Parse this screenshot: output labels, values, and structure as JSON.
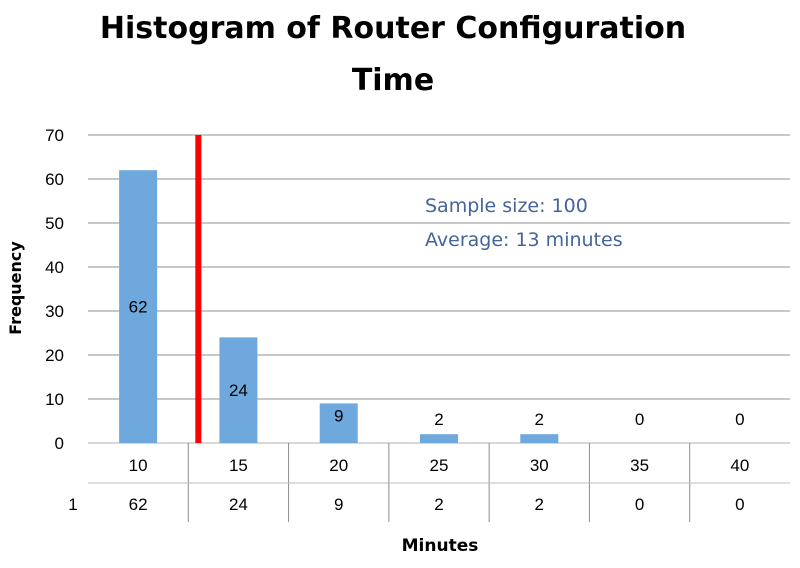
{
  "chart_data": {
    "type": "bar",
    "title_line1": "Histogram of Router Configuration",
    "title_line2": "Time",
    "xlabel": "Minutes",
    "ylabel": "Frequency",
    "categories": [
      "10",
      "15",
      "20",
      "25",
      "30",
      "35",
      "40"
    ],
    "values": [
      62,
      24,
      9,
      2,
      2,
      0,
      0
    ],
    "data_labels": [
      "62",
      "24",
      "9",
      "2",
      "2",
      "0",
      "0"
    ],
    "ylim": [
      0,
      70
    ],
    "yticks": [
      "0",
      "10",
      "20",
      "30",
      "40",
      "50",
      "60",
      "70"
    ],
    "grid": true,
    "bar_color": "#6fa8dc",
    "average_line": {
      "value": 13,
      "color": "#ff0000"
    },
    "annotations": [
      "Sample size: 100",
      "Average: 13 minutes"
    ],
    "data_table": {
      "row_label": "1",
      "values": [
        "62",
        "24",
        "9",
        "2",
        "2",
        "0",
        "0"
      ]
    }
  }
}
